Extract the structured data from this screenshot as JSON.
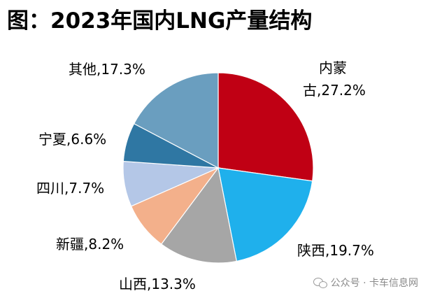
{
  "title": "图：2023年国内LNG产量结构",
  "watermark": "公众号 · 卡车信息网",
  "chart_data": {
    "type": "pie",
    "title": "图：2023年国内LNG产量结构",
    "slices": [
      {
        "label": "内蒙古",
        "value": 27.2,
        "display": "内蒙",
        "display2": "古,27.2%",
        "color": "#C00014"
      },
      {
        "label": "陕西",
        "value": 19.7,
        "display": "陕西,19.7%",
        "color": "#1FB0EC"
      },
      {
        "label": "山西",
        "value": 13.3,
        "display": "山西,13.3%",
        "color": "#A6A6A6"
      },
      {
        "label": "新疆",
        "value": 8.2,
        "display": "新疆,8.2%",
        "color": "#F3B08B"
      },
      {
        "label": "四川",
        "value": 7.7,
        "display": "四川,7.7%",
        "color": "#B4C7E7"
      },
      {
        "label": "宁夏",
        "value": 6.6,
        "display": "宁夏,6.6%",
        "color": "#2F77A3"
      },
      {
        "label": "其他",
        "value": 17.3,
        "display": "其他,17.3%",
        "color": "#6A9EBF"
      }
    ]
  }
}
